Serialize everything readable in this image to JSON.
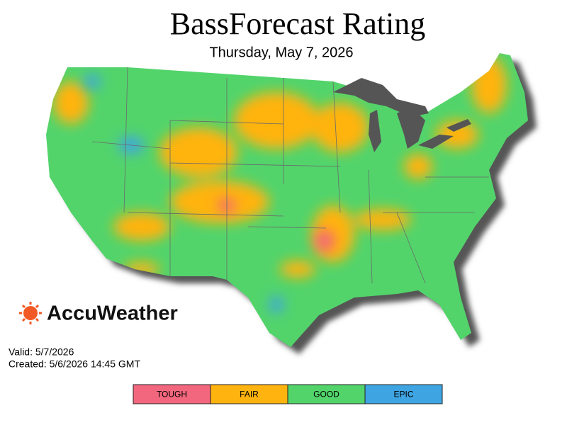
{
  "header": {
    "title": "BassForecast Rating",
    "subtitle": "Thursday, May 7, 2026"
  },
  "logo": {
    "text": "AccuWeather"
  },
  "info": {
    "valid": "Valid: 5/7/2026",
    "created": "Created: 5/6/2026 14:45 GMT"
  },
  "legend": [
    {
      "label": "TOUGH",
      "color": "#f2677d"
    },
    {
      "label": "FAIR",
      "color": "#ffb30f"
    },
    {
      "label": "GOOD",
      "color": "#52d46b"
    },
    {
      "label": "EPIC",
      "color": "#3fa4e2"
    }
  ]
}
